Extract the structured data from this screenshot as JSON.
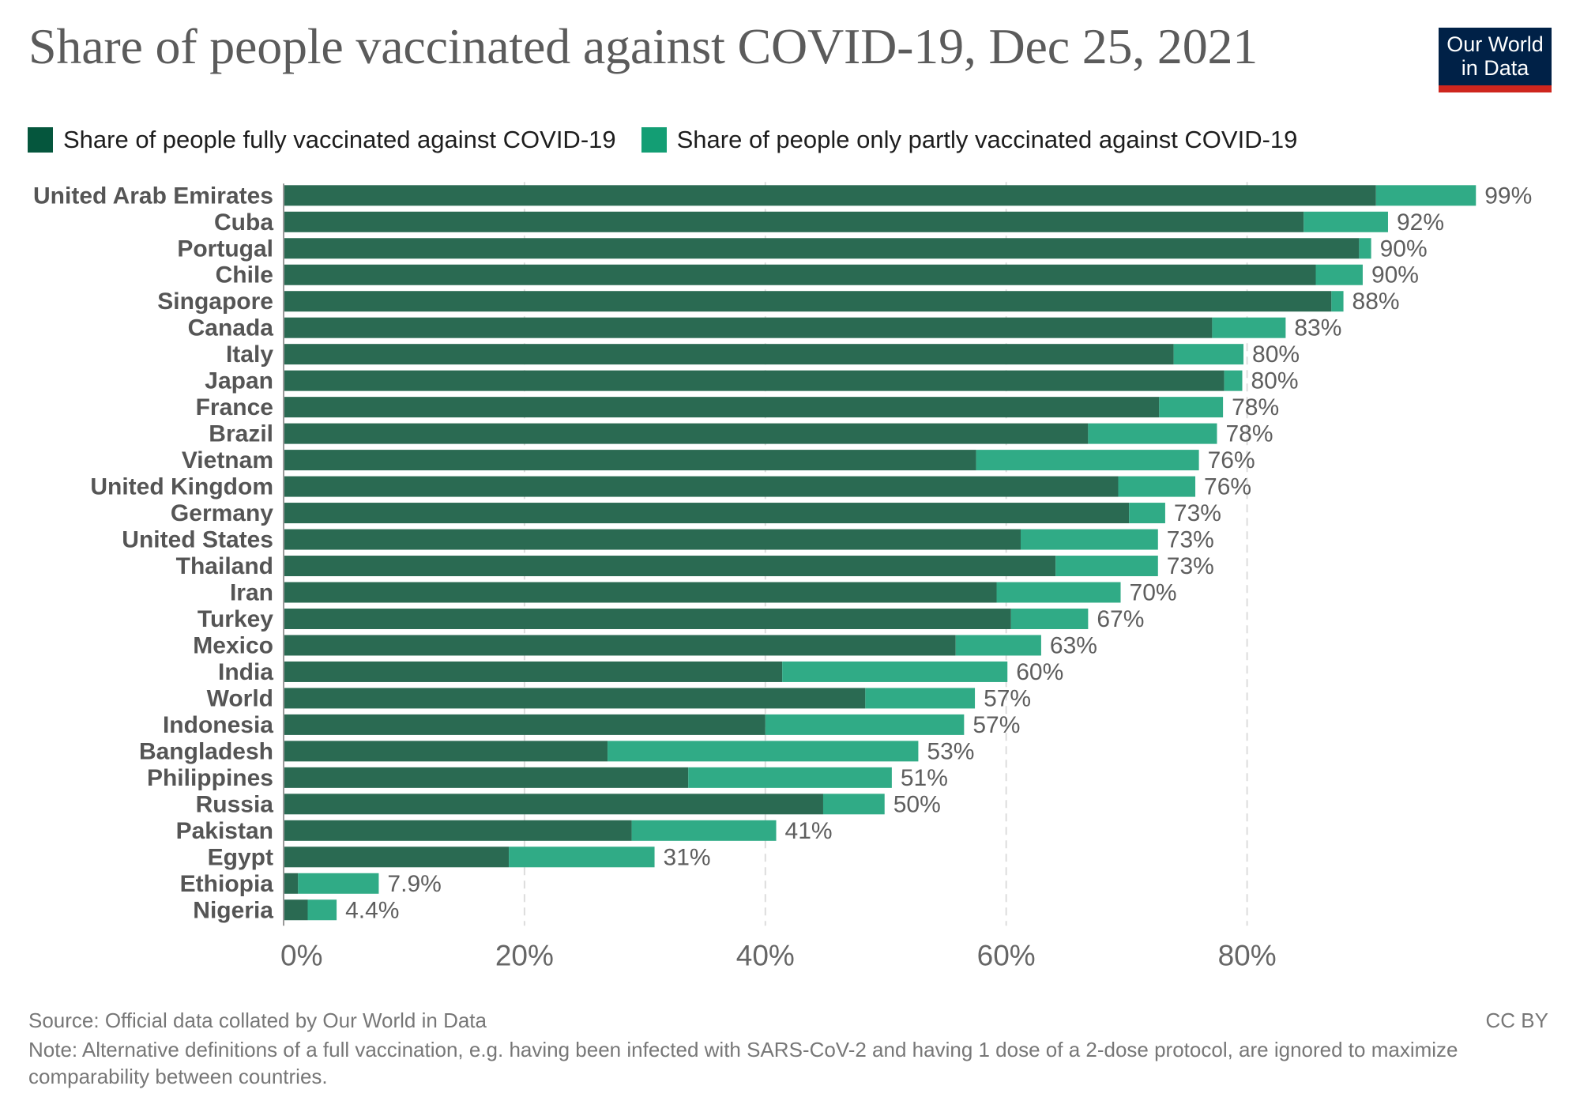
{
  "header": {
    "title": "Share of people vaccinated against COVID-19, Dec 25, 2021",
    "logo_line1": "Our World",
    "logo_line2": "in Data"
  },
  "colors": {
    "fully": "#2a6a52",
    "partly": "#30ab86",
    "legend_fully": "#05563d",
    "legend_partly": "#139e74",
    "logo_bg": "#002147",
    "logo_accent": "#ce261e"
  },
  "footer": {
    "source": "Source: Official data collated by Our World in Data",
    "note": "Note: Alternative definitions of a full vaccination, e.g. having been infected with SARS-CoV-2 and having 1 dose of a 2-dose protocol, are ignored to maximize comparability between countries.",
    "license": "CC BY"
  },
  "chart_data": {
    "type": "bar",
    "orientation": "horizontal",
    "stacked": true,
    "title": "Share of people vaccinated against COVID-19, Dec 25, 2021",
    "xlabel": "",
    "ylabel": "",
    "xlim": [
      0,
      100
    ],
    "x_ticks": [
      0,
      20,
      40,
      60,
      80
    ],
    "x_tick_labels": [
      "0%",
      "20%",
      "40%",
      "60%",
      "80%"
    ],
    "grid": "vertical dashed",
    "legend_position": "top-left",
    "categories": [
      "United Arab Emirates",
      "Cuba",
      "Portugal",
      "Chile",
      "Singapore",
      "Canada",
      "Italy",
      "Japan",
      "France",
      "Brazil",
      "Vietnam",
      "United Kingdom",
      "Germany",
      "United States",
      "Thailand",
      "Iran",
      "Turkey",
      "Mexico",
      "India",
      "World",
      "Indonesia",
      "Bangladesh",
      "Philippines",
      "Russia",
      "Pakistan",
      "Egypt",
      "Ethiopia",
      "Nigeria"
    ],
    "series": [
      {
        "name": "Share of people fully vaccinated against COVID-19",
        "values": [
          90.7,
          84.7,
          89.3,
          85.7,
          87.0,
          77.1,
          73.9,
          78.1,
          72.7,
          66.8,
          57.5,
          69.3,
          70.2,
          61.2,
          64.1,
          59.2,
          60.4,
          55.8,
          41.4,
          48.3,
          40.0,
          26.9,
          33.6,
          44.8,
          28.9,
          18.7,
          1.2,
          2.0
        ]
      },
      {
        "name": "Share of people only partly vaccinated against COVID-19",
        "values": [
          8.3,
          7.0,
          1.0,
          3.9,
          1.0,
          6.1,
          5.8,
          1.5,
          5.3,
          10.7,
          18.5,
          6.4,
          3.0,
          11.4,
          8.5,
          10.3,
          6.4,
          7.1,
          18.7,
          9.1,
          16.5,
          25.8,
          16.9,
          5.1,
          12.0,
          12.1,
          6.7,
          2.4
        ]
      }
    ],
    "total_labels": [
      "99%",
      "92%",
      "90%",
      "90%",
      "88%",
      "83%",
      "80%",
      "80%",
      "78%",
      "78%",
      "76%",
      "76%",
      "73%",
      "73%",
      "73%",
      "70%",
      "67%",
      "63%",
      "60%",
      "57%",
      "57%",
      "53%",
      "51%",
      "50%",
      "41%",
      "31%",
      "7.9%",
      "4.4%"
    ]
  }
}
